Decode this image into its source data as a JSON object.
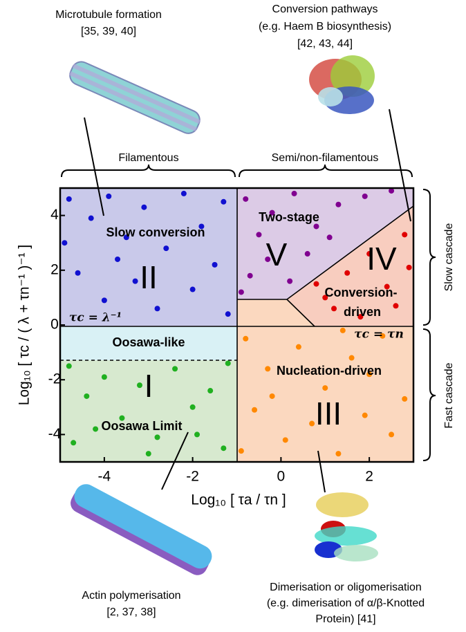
{
  "chart_data": {
    "type": "scatter",
    "x_label": "Log₁₀ [ τa / τn ]",
    "y_label": "Log₁₀ [ τc / ( λ + τn⁻¹ )⁻¹ ]",
    "xlim": [
      -5,
      3
    ],
    "ylim": [
      -5,
      5
    ],
    "xticks": [
      -4,
      -2,
      0,
      2
    ],
    "yticks": [
      -4,
      -2,
      0,
      2,
      4
    ],
    "annotations": [
      "Microtubule formation",
      "[35, 39, 40]",
      "Conversion pathways",
      "(e.g. Haem B biosynthesis)",
      "[42, 43, 44]",
      "Filamentous",
      "Semi/non-filamentous",
      "Slow cascade",
      "Fast cascade",
      "Slow conversion",
      "II",
      "Two-stage",
      "V",
      "IV",
      "Conversion-",
      "driven",
      "τc = λ⁻¹",
      "τc = τn",
      "Oosawa-like",
      "I",
      "Oosawa Limit",
      "Nucleation-driven",
      "III",
      "Actin polymerisation",
      "[2, 37, 38]",
      "Dimerisation or oligomerisation",
      "(e.g. dimerisation of α/β-Knotted",
      "Protein) [41]"
    ],
    "series": [
      {
        "color": "#1010d0",
        "x": [
          -4.8,
          -4.3,
          -3.9,
          -3.5,
          -3.1,
          -2.6,
          -2.2,
          -1.8,
          -1.3,
          -4.6,
          -4.0,
          -3.3,
          -2.8,
          -2.0,
          -1.5,
          -1.2,
          -4.9,
          -3.7
        ],
        "y": [
          4.6,
          3.9,
          4.7,
          3.2,
          4.3,
          2.8,
          4.8,
          3.6,
          4.5,
          1.9,
          0.9,
          1.6,
          0.6,
          1.3,
          2.2,
          0.4,
          3.0,
          2.4
        ]
      },
      {
        "color": "#20b020",
        "x": [
          -4.8,
          -4.4,
          -4.0,
          -3.6,
          -3.2,
          -2.8,
          -2.4,
          -2.0,
          -1.6,
          -1.3,
          -4.7,
          -4.2,
          -3.0,
          -1.9,
          -1.2
        ],
        "y": [
          -1.5,
          -2.6,
          -1.9,
          -3.4,
          -2.2,
          -4.1,
          -1.6,
          -3.0,
          -2.4,
          -4.5,
          -4.3,
          -3.8,
          -4.7,
          -4.0,
          -1.4
        ]
      },
      {
        "color": "#800090",
        "x": [
          -0.8,
          -0.5,
          -0.2,
          0.3,
          0.8,
          1.3,
          1.9,
          -0.7,
          -0.3,
          0.2,
          0.6,
          2.5,
          -0.9,
          1.1
        ],
        "y": [
          4.6,
          3.3,
          4.1,
          4.8,
          3.6,
          4.4,
          4.7,
          1.8,
          2.4,
          1.6,
          2.6,
          4.9,
          1.2,
          3.2
        ]
      },
      {
        "color": "#e00000",
        "x": [
          1.0,
          1.5,
          2.0,
          2.4,
          2.8,
          1.8,
          2.6,
          0.8,
          2.9,
          1.2
        ],
        "y": [
          1.0,
          1.9,
          2.6,
          1.4,
          3.3,
          0.3,
          0.7,
          1.5,
          2.1,
          0.6
        ]
      },
      {
        "color": "#ff8800",
        "x": [
          -0.8,
          -0.3,
          0.4,
          1.0,
          1.6,
          2.3,
          2.8,
          -0.6,
          0.1,
          0.7,
          1.3,
          1.9,
          2.5,
          -0.9,
          2.0,
          -0.2,
          1.4
        ],
        "y": [
          -0.5,
          -1.6,
          -0.8,
          -2.3,
          -1.2,
          -0.4,
          -2.7,
          -3.1,
          -4.2,
          -3.6,
          -4.7,
          -3.3,
          -4.0,
          -4.6,
          -1.8,
          -2.6,
          -0.2
        ]
      }
    ]
  }
}
